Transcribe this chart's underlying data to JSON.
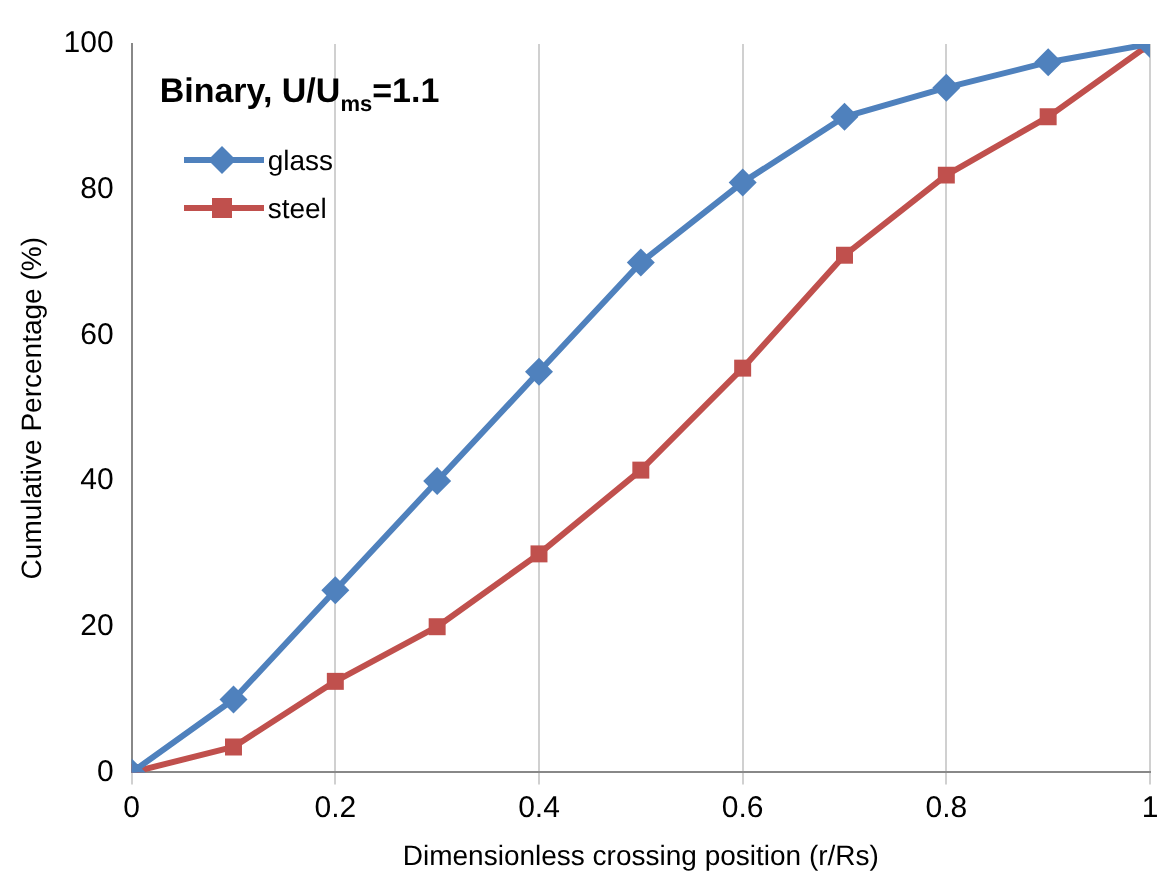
{
  "chart_data": {
    "type": "line",
    "title": "Binary, U/U$_{ms}$=1.1",
    "xlabel": "Dimensionless crossing position (r/Rs)",
    "ylabel": "Cumulative Percentage (%)",
    "x": [
      0,
      0.1,
      0.2,
      0.3,
      0.4,
      0.5,
      0.6,
      0.7,
      0.8,
      0.9,
      1
    ],
    "series": [
      {
        "name": "glass",
        "color": "#4f81bd",
        "marker": "diamond",
        "values": [
          0,
          10,
          25,
          40,
          55,
          70,
          81,
          90,
          94,
          97.5,
          100
        ]
      },
      {
        "name": "steel",
        "color": "#c0504d",
        "marker": "square",
        "values": [
          0,
          3.5,
          12.5,
          20,
          30,
          41.5,
          55.5,
          71,
          82,
          90,
          100
        ]
      }
    ],
    "xlim": [
      0,
      1
    ],
    "xticks": [
      0,
      0.2,
      0.4,
      0.6,
      0.8,
      1
    ],
    "ylim": [
      0,
      100
    ],
    "yticks": [
      0,
      20,
      40,
      60,
      80,
      100
    ],
    "grid": "x",
    "legend": "top left",
    "line_style": "solid"
  }
}
